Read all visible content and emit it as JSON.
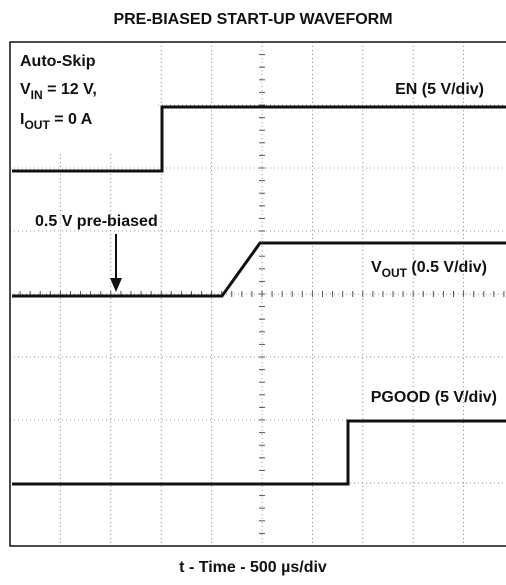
{
  "title": "PRE-BIASED START-UP WAVEFORM",
  "conditions": {
    "mode": "Auto-Skip",
    "vin": {
      "symbol": "V",
      "subscript": "IN",
      "text": " = 12 V,"
    },
    "iout": {
      "symbol": "I",
      "subscript": "OUT",
      "text": " = 0 A"
    }
  },
  "traces": {
    "en": {
      "label": "EN (5 V/div)"
    },
    "vout": {
      "symbol": "V",
      "subscript": "OUT",
      "text": " (0.5 V/div)"
    },
    "pgood": {
      "label": "PGOOD (5 V/div)"
    }
  },
  "annotation": "0.5 V pre-biased",
  "x_label": "t - Time - 500 µs/div"
}
